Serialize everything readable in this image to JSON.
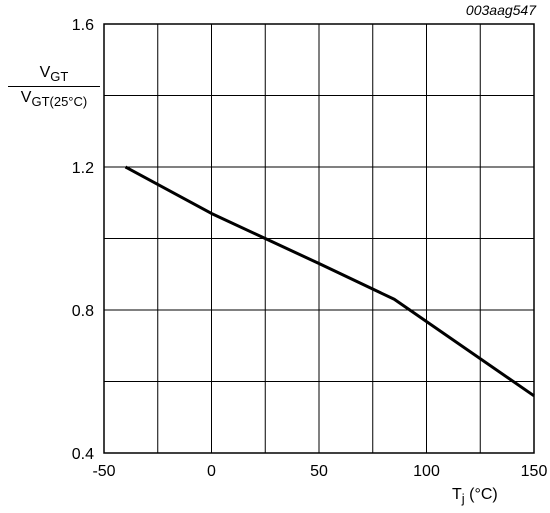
{
  "figure_id": "003aag547",
  "chart_data": {
    "type": "line",
    "xlabel": {
      "main": "T",
      "sub": "j",
      "unit": "(°C)"
    },
    "ylabel": {
      "numerator": {
        "main": "V",
        "sub": "GT"
      },
      "denominator": {
        "main": "V",
        "sub": "GT(25°C)"
      }
    },
    "xlim": [
      -50,
      150
    ],
    "ylim": [
      0.4,
      1.6
    ],
    "x_ticks": [
      -50,
      0,
      50,
      100,
      150
    ],
    "x_tick_labels": [
      "-50",
      "0",
      "50",
      "100",
      "150"
    ],
    "y_ticks": [
      0.4,
      0.8,
      1.2,
      1.6
    ],
    "y_tick_labels": [
      "0.4",
      "0.8",
      "1.2",
      "1.6"
    ],
    "x_grid": [
      -25,
      0,
      25,
      50,
      75,
      100,
      125
    ],
    "y_grid": [
      0.6,
      0.8,
      1.0,
      1.2,
      1.4
    ],
    "grid": true,
    "series": [
      {
        "x": [
          -40,
          0,
          25,
          50,
          85,
          150
        ],
        "values": [
          1.2,
          1.07,
          1.0,
          0.93,
          0.83,
          0.56
        ],
        "color": "#000000"
      }
    ]
  }
}
